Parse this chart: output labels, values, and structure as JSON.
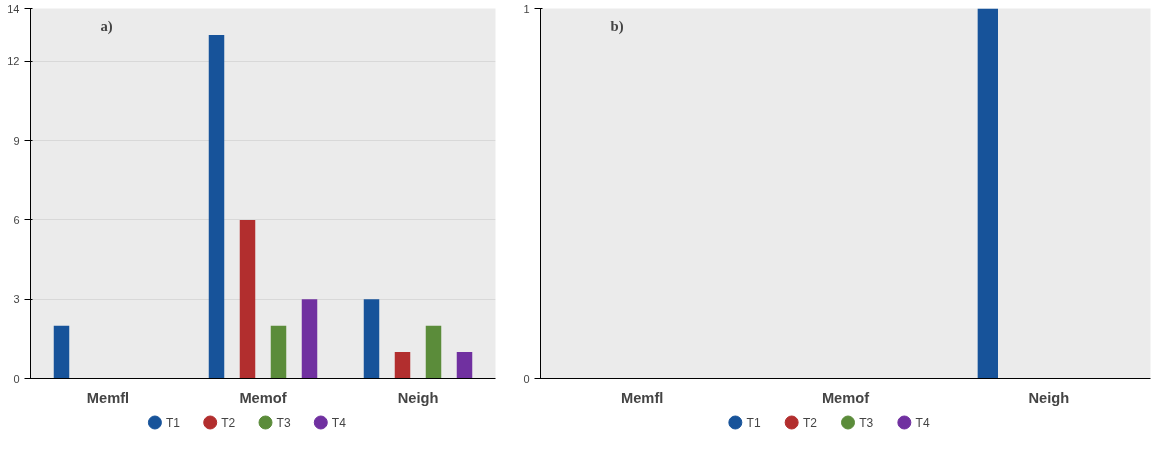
{
  "chart_data": [
    {
      "type": "bar",
      "title": "a)",
      "categories": [
        "Memfl",
        "Memof",
        "Neigh"
      ],
      "series": [
        {
          "name": "T1",
          "color": "#17539a",
          "values": [
            2,
            13,
            3
          ]
        },
        {
          "name": "T2",
          "color": "#b22e2e",
          "values": [
            0,
            6,
            1
          ]
        },
        {
          "name": "T3",
          "color": "#5b8c3a",
          "values": [
            0,
            2,
            2
          ]
        },
        {
          "name": "T4",
          "color": "#7030a0",
          "values": [
            0,
            3,
            1
          ]
        }
      ],
      "ylim": [
        0,
        14
      ],
      "yticks": [
        0,
        3,
        6,
        9,
        12,
        14
      ],
      "grid": "y",
      "legend": "bottom"
    },
    {
      "type": "bar",
      "title": "b)",
      "categories": [
        "Memfl",
        "Memof",
        "Neigh"
      ],
      "series": [
        {
          "name": "T1",
          "color": "#17539a",
          "values": [
            0,
            0,
            1
          ]
        },
        {
          "name": "T2",
          "color": "#b22e2e",
          "values": [
            0,
            0,
            0
          ]
        },
        {
          "name": "T3",
          "color": "#5b8c3a",
          "values": [
            0,
            0,
            0
          ]
        },
        {
          "name": "T4",
          "color": "#7030a0",
          "values": [
            0,
            0,
            0
          ]
        }
      ],
      "ylim": [
        0,
        1
      ],
      "yticks": [
        0,
        1
      ],
      "legend": "bottom"
    }
  ]
}
